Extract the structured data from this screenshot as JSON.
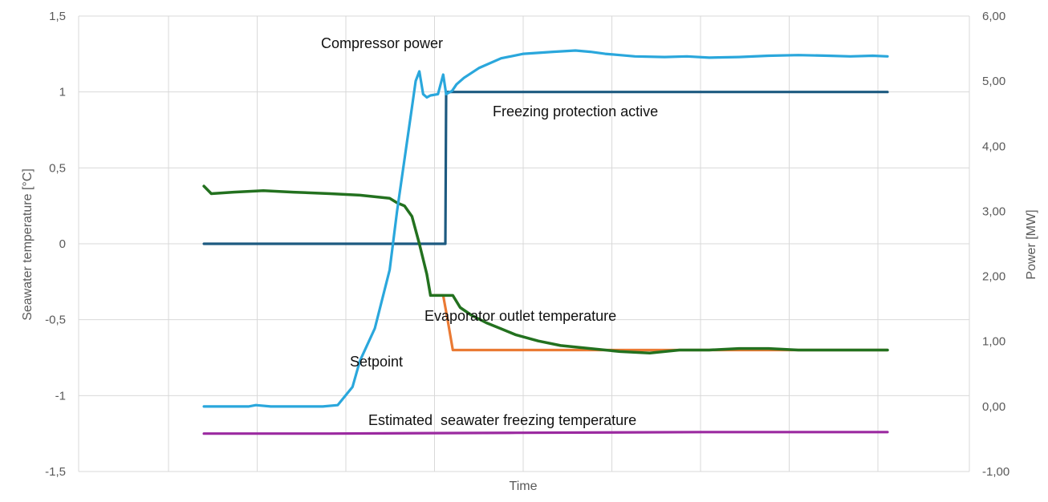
{
  "chart_data": {
    "type": "line",
    "title": "",
    "xlabel": "Time",
    "ylabel": "Seawater temperature [°C]",
    "y2label": "Power [MW]",
    "ylim": [
      -1.5,
      1.5
    ],
    "y2lim": [
      -1.0,
      6.0
    ],
    "xlim": [
      0,
      100
    ],
    "yticks": [
      "-1,5",
      "-1",
      "-0,5",
      "0",
      "0,5",
      "1",
      "1,5"
    ],
    "y2ticks": [
      "-1,00",
      "0,00",
      "1,00",
      "2,00",
      "3,00",
      "4,00",
      "5,00",
      "6,00"
    ],
    "grid": true,
    "legend": "none",
    "series": [
      {
        "name": "Compressor power",
        "axis": "right",
        "color": "#2aa7dc",
        "x": [
          8,
          14,
          15,
          17,
          24,
          26,
          28,
          29,
          31,
          33,
          34,
          35,
          36,
          36.5,
          37,
          37.5,
          38,
          38.5,
          39.5,
          40.2,
          40.6,
          41.4,
          42,
          43,
          45,
          48,
          51,
          55,
          58,
          60,
          62,
          64,
          66,
          70,
          73,
          76,
          80,
          84,
          88,
          92,
          95,
          98,
          100
        ],
        "values": [
          0.0,
          0.0,
          0.02,
          0.0,
          0.0,
          0.02,
          0.3,
          0.7,
          1.2,
          2.1,
          3.0,
          3.8,
          4.6,
          5.0,
          5.15,
          4.8,
          4.75,
          4.78,
          4.8,
          5.1,
          4.8,
          4.85,
          4.95,
          5.05,
          5.2,
          5.35,
          5.42,
          5.45,
          5.47,
          5.45,
          5.42,
          5.4,
          5.38,
          5.37,
          5.38,
          5.36,
          5.37,
          5.39,
          5.4,
          5.39,
          5.38,
          5.39,
          5.38
        ]
      },
      {
        "name": "Freezing protection active",
        "axis": "left",
        "color": "#1d5a80",
        "x": [
          8,
          40.5,
          40.6,
          100
        ],
        "values": [
          0,
          0,
          1,
          1
        ]
      },
      {
        "name": "Evaporator outlet temperature",
        "axis": "left",
        "color": "#23711f",
        "x": [
          8,
          9,
          12,
          16,
          20,
          25,
          29,
          33,
          34,
          35,
          36,
          37,
          38,
          38.5,
          39,
          40,
          41.5,
          42.5,
          44,
          46,
          48,
          50,
          53,
          56,
          60,
          64,
          68,
          72,
          76,
          80,
          84,
          88,
          92,
          96,
          100
        ],
        "values": [
          0.38,
          0.33,
          0.34,
          0.35,
          0.34,
          0.33,
          0.32,
          0.3,
          0.27,
          0.25,
          0.18,
          0.0,
          -0.2,
          -0.34,
          -0.34,
          -0.34,
          -0.34,
          -0.42,
          -0.47,
          -0.52,
          -0.56,
          -0.6,
          -0.64,
          -0.67,
          -0.69,
          -0.71,
          -0.72,
          -0.7,
          -0.7,
          -0.69,
          -0.69,
          -0.7,
          -0.7,
          -0.7,
          -0.7
        ]
      },
      {
        "name": "Setpoint",
        "axis": "left",
        "color": "#ea7a34",
        "x": [
          38.5,
          40.2,
          40.8,
          41.5,
          45,
          100
        ],
        "values": [
          -0.34,
          -0.34,
          -0.5,
          -0.7,
          -0.7,
          -0.7
        ]
      },
      {
        "name": "Estimated  seawater freezing temperature",
        "axis": "left",
        "color": "#9b2aa0",
        "x": [
          8,
          25,
          50,
          75,
          100
        ],
        "values": [
          -1.25,
          -1.25,
          -1.245,
          -1.24,
          -1.24
        ]
      }
    ],
    "annotations": [
      {
        "text": "Compressor power",
        "series": 0
      },
      {
        "text": "Freezing protection active",
        "series": 1
      },
      {
        "text": "Evaporator outlet temperature",
        "series": 2
      },
      {
        "text": "Setpoint",
        "series": 3
      },
      {
        "text": "Estimated  seawater freezing temperature",
        "series": 4
      }
    ]
  }
}
